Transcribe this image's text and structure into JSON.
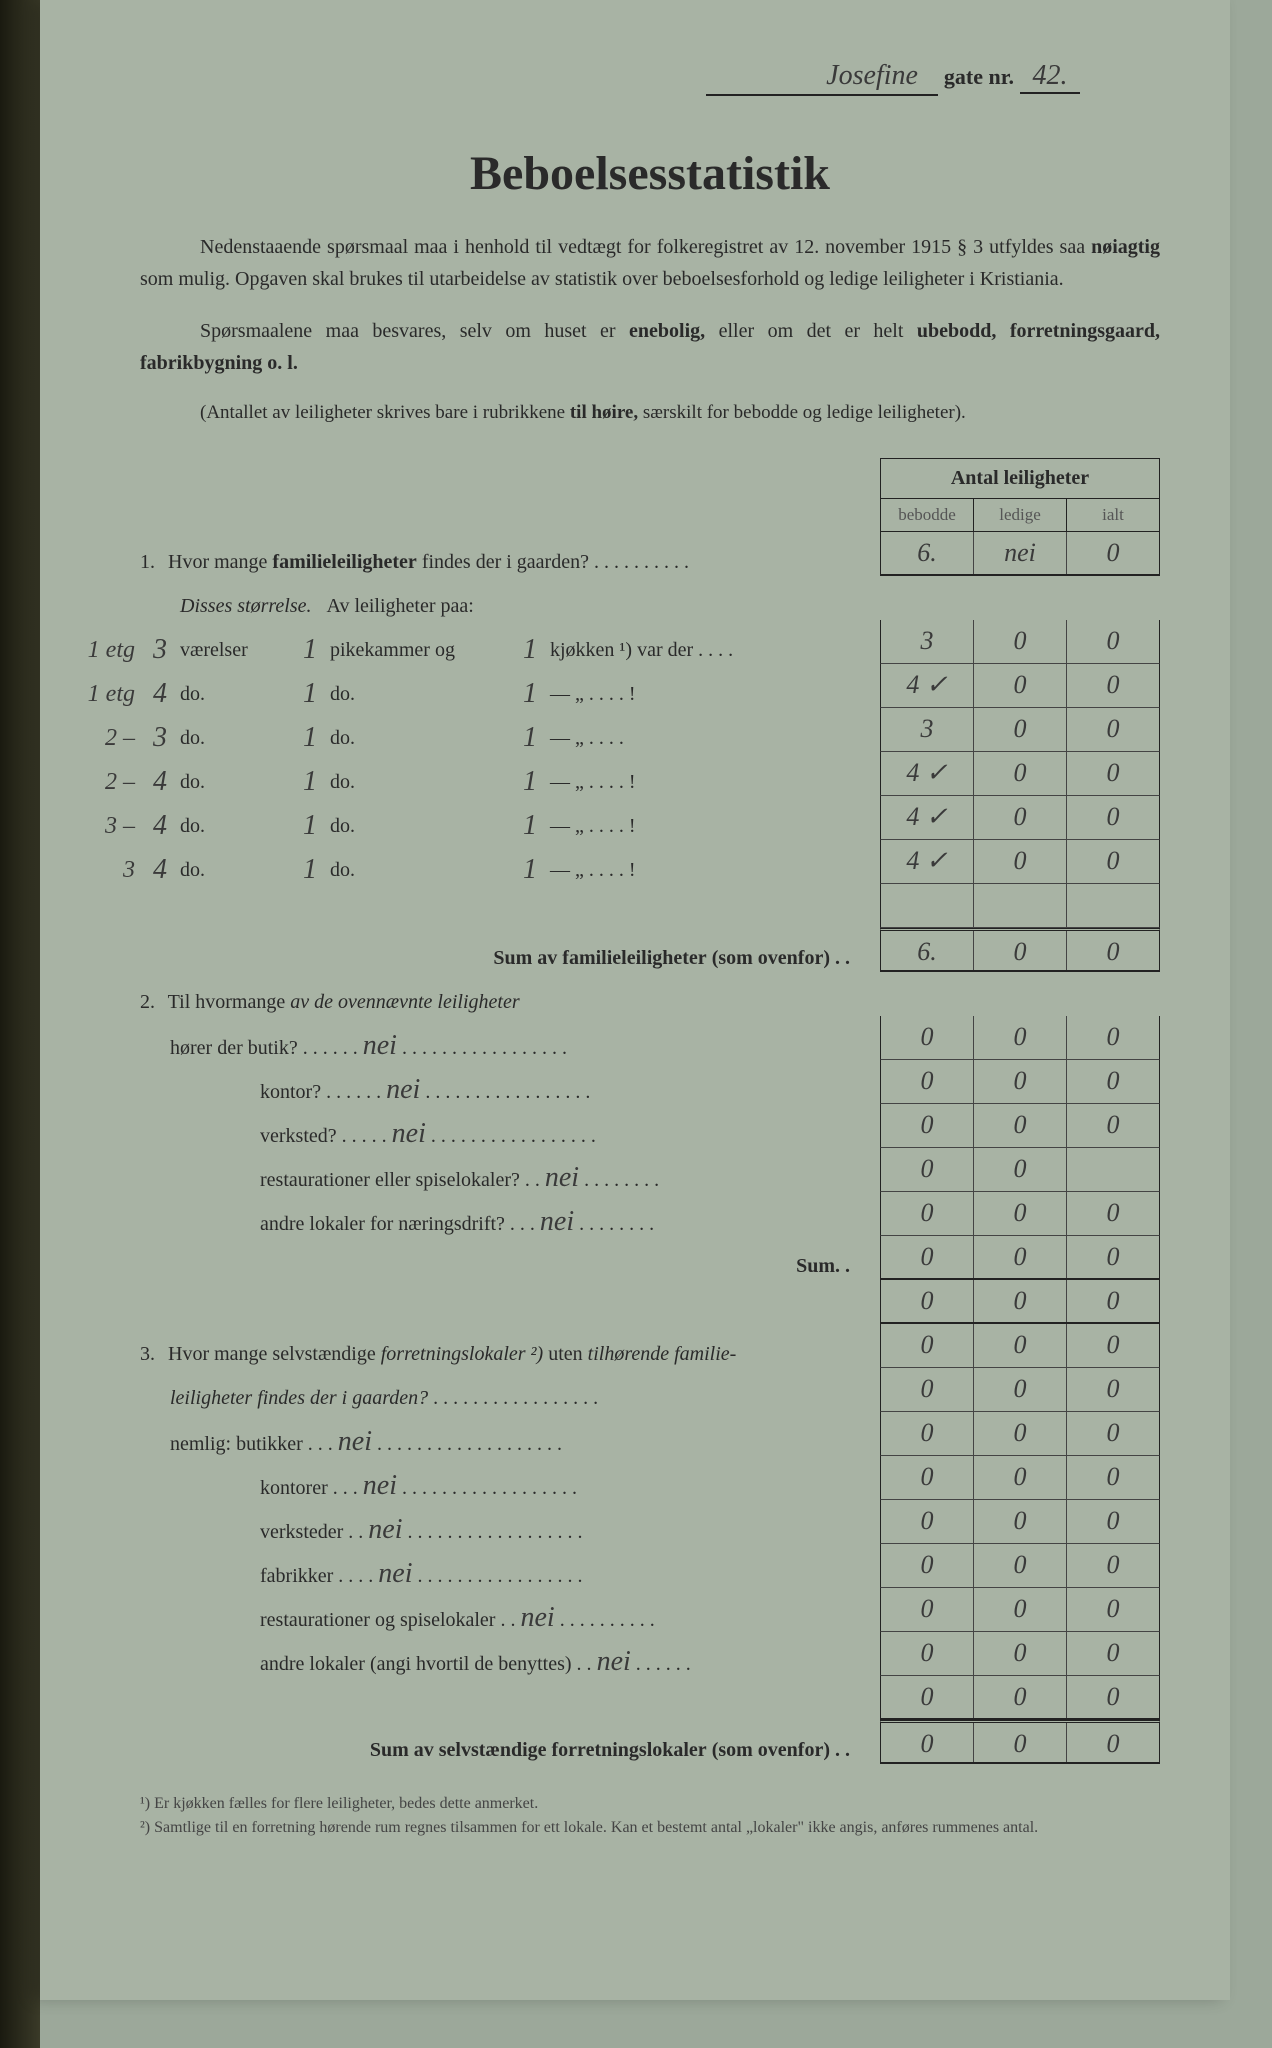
{
  "header": {
    "street_name": "Josefine",
    "gate_label": "gate nr.",
    "street_nr": "42."
  },
  "title": "Beboelsesstatistik",
  "intro": {
    "p1a": "Nedenstaaende spørsmaal maa i henhold til vedtægt for folkeregistret av 12. november 1915 § 3 utfyldes saa ",
    "p1bold1": "nøiagtig",
    "p1b": " som mulig.    Opgaven skal brukes til utarbeidelse av statistik over beboelsesforhold og ledige leiligheter i Kristiania.",
    "p2a": "Spørsmaalene maa besvares, selv om huset er ",
    "p2bold": "enebolig,",
    "p2b": " eller om det er helt ",
    "p2bold2": "ubebodd, forretningsgaard, fabrikbygning o. l.",
    "p3a": "(Antallet av leiligheter skrives bare i rubrikkene ",
    "p3bold": "til høire,",
    "p3b": " særskilt for bebodde og ledige leiligheter)."
  },
  "table_header": {
    "title": "Antal leiligheter",
    "col1": "bebodde",
    "col2": "ledige",
    "col3": "ialt"
  },
  "q1": {
    "text": "Hvor mange ",
    "bold": "familieleiligheter",
    "text2": " findes der i gaarden? . . . . . . . . . .",
    "values": [
      "6.",
      "nei",
      "0"
    ],
    "sizes_label_a": "Disses størrelse.",
    "sizes_label_b": "Av leiligheter paa:",
    "rows": [
      {
        "margin": "1 etg",
        "rooms": "3",
        "v1": "1",
        "v2": "1",
        "label": "værelser",
        "pk": "pikekammer og",
        "kj": "kjøkken ¹) var der . . . .",
        "vals": [
          "3",
          "0",
          "0"
        ]
      },
      {
        "margin": "1 etg",
        "rooms": "4",
        "v1": "1",
        "v2": "1",
        "label": "do.",
        "pk": "do.",
        "kj": "—      „   . . . . !",
        "vals": [
          "4 ✓",
          "0",
          "0"
        ]
      },
      {
        "margin": "2  –",
        "rooms": "3",
        "v1": "1",
        "v2": "1",
        "label": "do.",
        "pk": "do.",
        "kj": "—      „   . . . .",
        "vals": [
          "3",
          "0",
          "0"
        ]
      },
      {
        "margin": "2  –",
        "rooms": "4",
        "v1": "1",
        "v2": "1",
        "label": "do.",
        "pk": "do.",
        "kj": "—      „   . . . . !",
        "vals": [
          "4 ✓",
          "0",
          "0"
        ]
      },
      {
        "margin": "3  –",
        "rooms": "4",
        "v1": "1",
        "v2": "1",
        "label": "do.",
        "pk": "do.",
        "kj": "—      „   . . . . !",
        "vals": [
          "4 ✓",
          "0",
          "0"
        ]
      },
      {
        "margin": "3",
        "rooms": "4",
        "v1": "1",
        "v2": "1",
        "label": "do.",
        "pk": "do.",
        "kj": "—      „   . . . . !",
        "vals": [
          "4 ✓",
          "0",
          "0"
        ]
      }
    ],
    "sum_label": "Sum av familieleiligheter",
    "sum_paren": " (som ovenfor) . .",
    "sum_vals": [
      "6.",
      "0",
      "0"
    ],
    "empty_vals": [
      "",
      "",
      ""
    ]
  },
  "q2": {
    "text": "Til hvormange ",
    "ital": "av de ovennævnte leiligheter",
    "rows": [
      {
        "label": "hører der butik? . . . . . .",
        "hw": "nei",
        "dots": ". . . . . . . . . . . . . . . . .",
        "vals": [
          "0",
          "0",
          "0"
        ]
      },
      {
        "label": "kontor? . . . . . .",
        "hw": "nei",
        "dots": ". . . . . . . . . . . . . . . . .",
        "vals": [
          "0",
          "0",
          "0"
        ]
      },
      {
        "label": "verksted? . . . . .",
        "hw": "nei",
        "dots": ". . . . . . . . . . . . . . . . .",
        "vals": [
          "0",
          "0",
          "0"
        ]
      },
      {
        "label": "restaurationer eller spiselokaler? . .",
        "hw": "nei",
        "dots": ". . . . . . . .",
        "vals": [
          "0",
          "0",
          ""
        ]
      },
      {
        "label": "andre lokaler for næringsdrift? . . .",
        "hw": "nei",
        "dots": ". . . . . . . .",
        "vals": [
          "0",
          "0",
          "0"
        ]
      }
    ],
    "sum_label": "Sum. .",
    "sum_vals": [
      "0",
      "0",
      "0"
    ],
    "total_vals": [
      "0",
      "0",
      "0"
    ]
  },
  "q3": {
    "text1": "Hvor mange selvstændige ",
    "ital1": "forretningslokaler ²)",
    "text2": "  uten  ",
    "ital2": "tilhørende familie-",
    "line2": "leiligheter findes der i gaarden?",
    "dots2": " . . . . . . . . . . . . . . . . .",
    "vals_top": [
      "0",
      "0",
      "0"
    ],
    "vals_line": [
      "0",
      "0",
      "0"
    ],
    "nemlig": "nemlig: ",
    "rows": [
      {
        "label": "butikker  . . .",
        "hw": "nei",
        "dots": ". . . . . . . . . . . . . . . . . . .",
        "vals": [
          "0",
          "0",
          "0"
        ]
      },
      {
        "label": "kontorer   . . .",
        "hw": "nei",
        "dots": ". . . . . . . . . . . . . . . . . .",
        "vals": [
          "0",
          "0",
          "0"
        ]
      },
      {
        "label": "verksteder  . .",
        "hw": "nei",
        "dots": ". . . . . . . . . . . . . . . . . .",
        "vals": [
          "0",
          "0",
          "0"
        ]
      },
      {
        "label": "fabrikker  . . . .",
        "hw": "nei",
        "dots": ". . . . . . . . . . . . . . . . .",
        "vals": [
          "0",
          "0",
          "0"
        ]
      },
      {
        "label": "restaurationer og spiselokaler  . .",
        "hw": "nei",
        "dots": ". . . . . . . . . .",
        "vals": [
          "0",
          "0",
          "0"
        ]
      },
      {
        "label": "andre lokaler (angi hvortil de benyttes) . .",
        "hw": "nei",
        "dots": ". . . . . .",
        "vals": [
          "0",
          "0",
          "0"
        ]
      }
    ],
    "subtotal_vals": [
      "0",
      "0",
      "0"
    ],
    "sum_label": "Sum av selvstændige forretningslokaler",
    "sum_paren": " (som ovenfor) . .",
    "sum_vals": [
      "0",
      "0",
      "0"
    ]
  },
  "footnotes": {
    "f1": "¹)  Er kjøkken fælles for flere leiligheter, bedes dette anmerket.",
    "f2": "²)  Samtlige til en forretning hørende rum regnes tilsammen for ett lokale.  Kan et bestemt antal „lokaler\" ikke angis, anføres rummenes antal."
  }
}
